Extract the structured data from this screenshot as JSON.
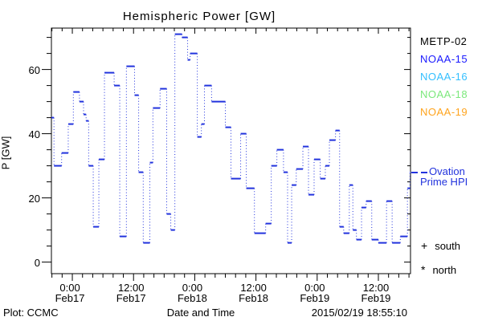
{
  "title": "Hemispheric Power [GW]",
  "chart_data": {
    "type": "line",
    "style": "step-after; horizontal value segments solid, vertical connectors dotted",
    "title": "Hemispheric Power [GW]",
    "xlabel": "Date and Time",
    "ylabel": "P [GW]",
    "x_unit": "hours relative to 2015-02-17 00:00",
    "x_range": [
      -4.1,
      66.3
    ],
    "y_range": [
      -3.6,
      72.9
    ],
    "y_major_ticks": [
      0,
      20,
      40,
      60
    ],
    "y_minor_step": 5,
    "y_minor_max": 70,
    "x_minor_step": 2,
    "x_major_ticks": [
      {
        "hour": 0,
        "time": "0:00",
        "date": "Feb17"
      },
      {
        "hour": 12,
        "time": "12:00",
        "date": "Feb17"
      },
      {
        "hour": 24,
        "time": "0:00",
        "date": "Feb18"
      },
      {
        "hour": 36,
        "time": "12:00",
        "date": "Feb18"
      },
      {
        "hour": 48,
        "time": "0:00",
        "date": "Feb19"
      },
      {
        "hour": 60,
        "time": "12:00",
        "date": "Feb19"
      }
    ],
    "series": [
      {
        "name": "Ovation Prime HPI",
        "color": "#2233dd",
        "units": "GW",
        "steps": [
          [
            -4.1,
            45
          ],
          [
            -3.6,
            30
          ],
          [
            -2.1,
            34
          ],
          [
            -0.8,
            43
          ],
          [
            0.2,
            53
          ],
          [
            1.4,
            50
          ],
          [
            2.2,
            46
          ],
          [
            2.7,
            44
          ],
          [
            3.2,
            30
          ],
          [
            4.1,
            11
          ],
          [
            5.2,
            32
          ],
          [
            6.3,
            59
          ],
          [
            8.2,
            55
          ],
          [
            9.3,
            8
          ],
          [
            10.6,
            61
          ],
          [
            12.2,
            52
          ],
          [
            13.0,
            28
          ],
          [
            13.9,
            6
          ],
          [
            15.2,
            31
          ],
          [
            15.8,
            48
          ],
          [
            17.2,
            54
          ],
          [
            18.5,
            15
          ],
          [
            19.3,
            10
          ],
          [
            20.1,
            71
          ],
          [
            21.5,
            70
          ],
          [
            22.6,
            63
          ],
          [
            23.1,
            65
          ],
          [
            24.5,
            39
          ],
          [
            25.3,
            43
          ],
          [
            25.9,
            55
          ],
          [
            27.3,
            50
          ],
          [
            30.0,
            42
          ],
          [
            31.1,
            26
          ],
          [
            33.0,
            40
          ],
          [
            34.1,
            23
          ],
          [
            35.7,
            9
          ],
          [
            37.9,
            12
          ],
          [
            39.0,
            30
          ],
          [
            40.1,
            35
          ],
          [
            41.4,
            28
          ],
          [
            42.2,
            6
          ],
          [
            43.0,
            24
          ],
          [
            43.9,
            29
          ],
          [
            45.2,
            36
          ],
          [
            46.3,
            21
          ],
          [
            47.4,
            32
          ],
          [
            48.6,
            26
          ],
          [
            49.6,
            30
          ],
          [
            50.4,
            38
          ],
          [
            51.6,
            41
          ],
          [
            52.4,
            11
          ],
          [
            53.2,
            9
          ],
          [
            54.3,
            24
          ],
          [
            55.0,
            10
          ],
          [
            55.7,
            7
          ],
          [
            56.7,
            17
          ],
          [
            57.6,
            19
          ],
          [
            58.7,
            7
          ],
          [
            60.0,
            6
          ],
          [
            61.6,
            19
          ],
          [
            62.7,
            6
          ],
          [
            64.3,
            8
          ],
          [
            65.7,
            23
          ],
          [
            66.2,
            28
          ]
        ],
        "end_hour": 66.3
      }
    ]
  },
  "legend": {
    "satellites": [
      {
        "label": "METP-02",
        "color": "#000000"
      },
      {
        "label": "NOAA-15",
        "color": "#1a1aff"
      },
      {
        "label": "NOAA-16",
        "color": "#33bfff"
      },
      {
        "label": "NOAA-18",
        "color": "#7be87b"
      },
      {
        "label": "NOAA-19",
        "color": "#ffa41e"
      }
    ],
    "line_series": {
      "line1": "Ovation",
      "line2": "Prime HPI",
      "color": "#2233dd"
    },
    "markers": [
      {
        "symbol": "+",
        "label": "south"
      },
      {
        "symbol": "*",
        "label": "north"
      }
    ]
  },
  "footer": {
    "left": "Plot: CCMC",
    "right": "2015/02/19 18:55:10"
  }
}
